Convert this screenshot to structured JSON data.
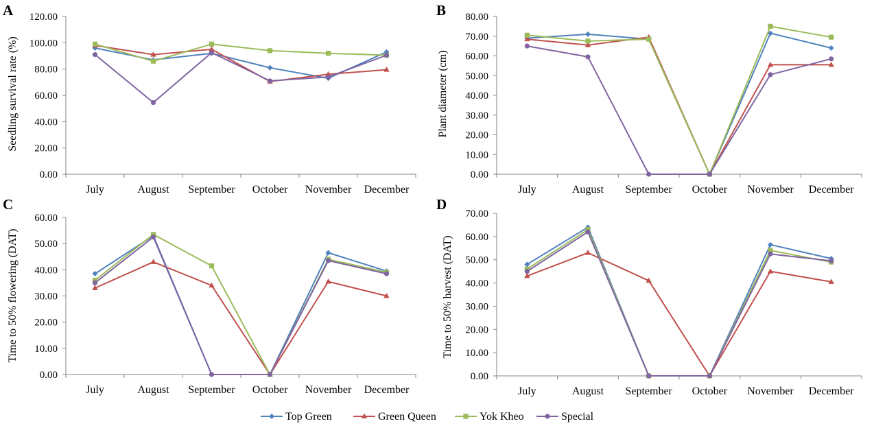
{
  "legend": {
    "entries": [
      {
        "name": "Top Green",
        "color": "#4F81BD",
        "marker": "diamond"
      },
      {
        "name": "Green Queen",
        "color": "#C0504D",
        "marker": "triangle"
      },
      {
        "name": "Yok Kheo",
        "color": "#9BBB59",
        "marker": "square"
      },
      {
        "name": "Special",
        "color": "#8064A2",
        "marker": "circle"
      }
    ]
  },
  "chart_data": [
    {
      "panel": "A",
      "type": "line",
      "ylabel": "Seedling survival rate (%)",
      "ylim": [
        0,
        120
      ],
      "yticks": [
        "0.00",
        "20.00",
        "40.00",
        "60.00",
        "80.00",
        "100.00",
        "120.00"
      ],
      "categories": [
        "July",
        "August",
        "September",
        "October",
        "November",
        "December"
      ],
      "series": [
        {
          "name": "Top Green",
          "values": [
            96,
            87,
            92,
            81,
            73,
            93
          ]
        },
        {
          "name": "Green Queen",
          "values": [
            98,
            91,
            95,
            70.5,
            76,
            79.5
          ]
        },
        {
          "name": "Yok Kheo",
          "values": [
            99,
            86,
            99,
            94,
            92,
            90.5
          ]
        },
        {
          "name": "Special",
          "values": [
            91,
            54.5,
            92.5,
            71,
            74,
            90.5
          ]
        }
      ]
    },
    {
      "panel": "B",
      "type": "line",
      "ylabel": "Plant diameter (cm)",
      "ylim": [
        0,
        80
      ],
      "yticks": [
        "0.00",
        "10.00",
        "20.00",
        "30.00",
        "40.00",
        "50.00",
        "60.00",
        "70.00",
        "80.00"
      ],
      "categories": [
        "July",
        "August",
        "September",
        "October",
        "November",
        "December"
      ],
      "series": [
        {
          "name": "Top Green",
          "values": [
            69,
            71,
            68.5,
            0,
            71.5,
            64
          ]
        },
        {
          "name": "Green Queen",
          "values": [
            68.5,
            65.5,
            69.5,
            0,
            55.5,
            55.5
          ]
        },
        {
          "name": "Yok Kheo",
          "values": [
            70.5,
            67.5,
            68.5,
            0,
            75,
            69.5
          ]
        },
        {
          "name": "Special",
          "values": [
            65,
            59.5,
            0,
            0,
            50.5,
            58.5
          ]
        }
      ]
    },
    {
      "panel": "C",
      "type": "line",
      "ylabel": "Time to 50% flowering (DAT)",
      "ylim": [
        0,
        60
      ],
      "yticks": [
        "0.00",
        "10.00",
        "20.00",
        "30.00",
        "40.00",
        "50.00",
        "60.00"
      ],
      "categories": [
        "July",
        "August",
        "September",
        "October",
        "November",
        "December"
      ],
      "series": [
        {
          "name": "Top Green",
          "values": [
            38.5,
            53,
            0,
            0,
            46.5,
            39.5
          ]
        },
        {
          "name": "Green Queen",
          "values": [
            33,
            43,
            34,
            0,
            35.5,
            30
          ]
        },
        {
          "name": "Yok Kheo",
          "values": [
            36,
            53.5,
            41.5,
            0,
            44,
            39
          ]
        },
        {
          "name": "Special",
          "values": [
            35,
            52.5,
            0,
            0,
            43.5,
            38.5
          ]
        }
      ]
    },
    {
      "panel": "D",
      "type": "line",
      "ylabel": "Time to 50% harvest (DAT)",
      "ylim": [
        0,
        70
      ],
      "yticks": [
        "0.00",
        "10.00",
        "20.00",
        "30.00",
        "40.00",
        "50.00",
        "60.00",
        "70.00"
      ],
      "categories": [
        "July",
        "August",
        "September",
        "October",
        "November",
        "December"
      ],
      "series": [
        {
          "name": "Top Green",
          "values": [
            48,
            64,
            0,
            0,
            56.5,
            50.5
          ]
        },
        {
          "name": "Green Queen",
          "values": [
            43,
            53,
            41,
            0,
            45,
            40.5
          ]
        },
        {
          "name": "Yok Kheo",
          "values": [
            46,
            63,
            0,
            0,
            54,
            49
          ]
        },
        {
          "name": "Special",
          "values": [
            45,
            62,
            0,
            0,
            52.5,
            49.5
          ]
        }
      ]
    }
  ]
}
